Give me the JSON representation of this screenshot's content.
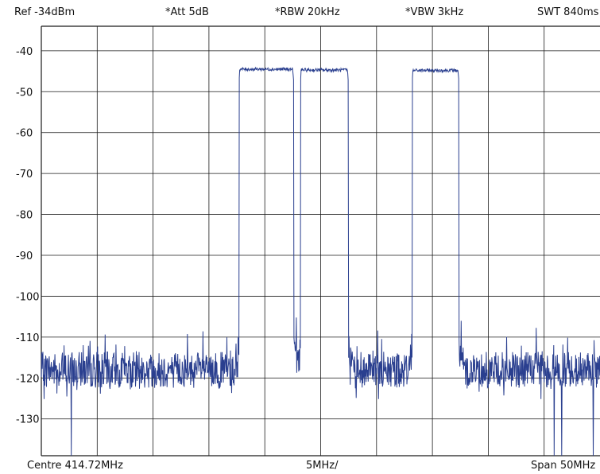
{
  "header": {
    "ref": "Ref -34dBm",
    "att": "*Att 5dB",
    "rbw": "*RBW 20kHz",
    "vbw": "*VBW 3kHz",
    "swt": "SWT 840ms"
  },
  "footer": {
    "centre": "Centre 414.72MHz",
    "div": "5MHz/",
    "span": "Span 50MHz"
  },
  "colors": {
    "trace": "#2a3f8f",
    "grid": "#1a1a1a",
    "background": "#ffffff"
  },
  "chart_data": {
    "type": "line",
    "title": "",
    "xlabel": "",
    "ylabel": "",
    "x_unit": "MHz",
    "y_unit": "dBm",
    "xlim": [
      389.72,
      439.72
    ],
    "ylim": [
      -139,
      -34
    ],
    "y_ticks": [
      -40,
      -50,
      -60,
      -70,
      -80,
      -90,
      -100,
      -110,
      -120,
      -130
    ],
    "x_grid_step": 5,
    "grid": true,
    "series": [
      {
        "noise_floor_dbm": -118,
        "noise_spread_db": 4,
        "channels": [
          {
            "start_mhz": 407.4,
            "end_mhz": 412.3,
            "level_dbm": -44.5
          },
          {
            "start_mhz": 412.9,
            "end_mhz": 417.2,
            "level_dbm": -44.7
          },
          {
            "start_mhz": 422.9,
            "end_mhz": 427.1,
            "level_dbm": -44.8
          }
        ],
        "dropouts": [
          {
            "x_mhz": 392.4,
            "level_dbm": -139
          },
          {
            "x_mhz": 435.6,
            "level_dbm": -139
          },
          {
            "x_mhz": 436.3,
            "level_dbm": -139
          },
          {
            "x_mhz": 439.1,
            "level_dbm": -139
          }
        ]
      }
    ]
  }
}
